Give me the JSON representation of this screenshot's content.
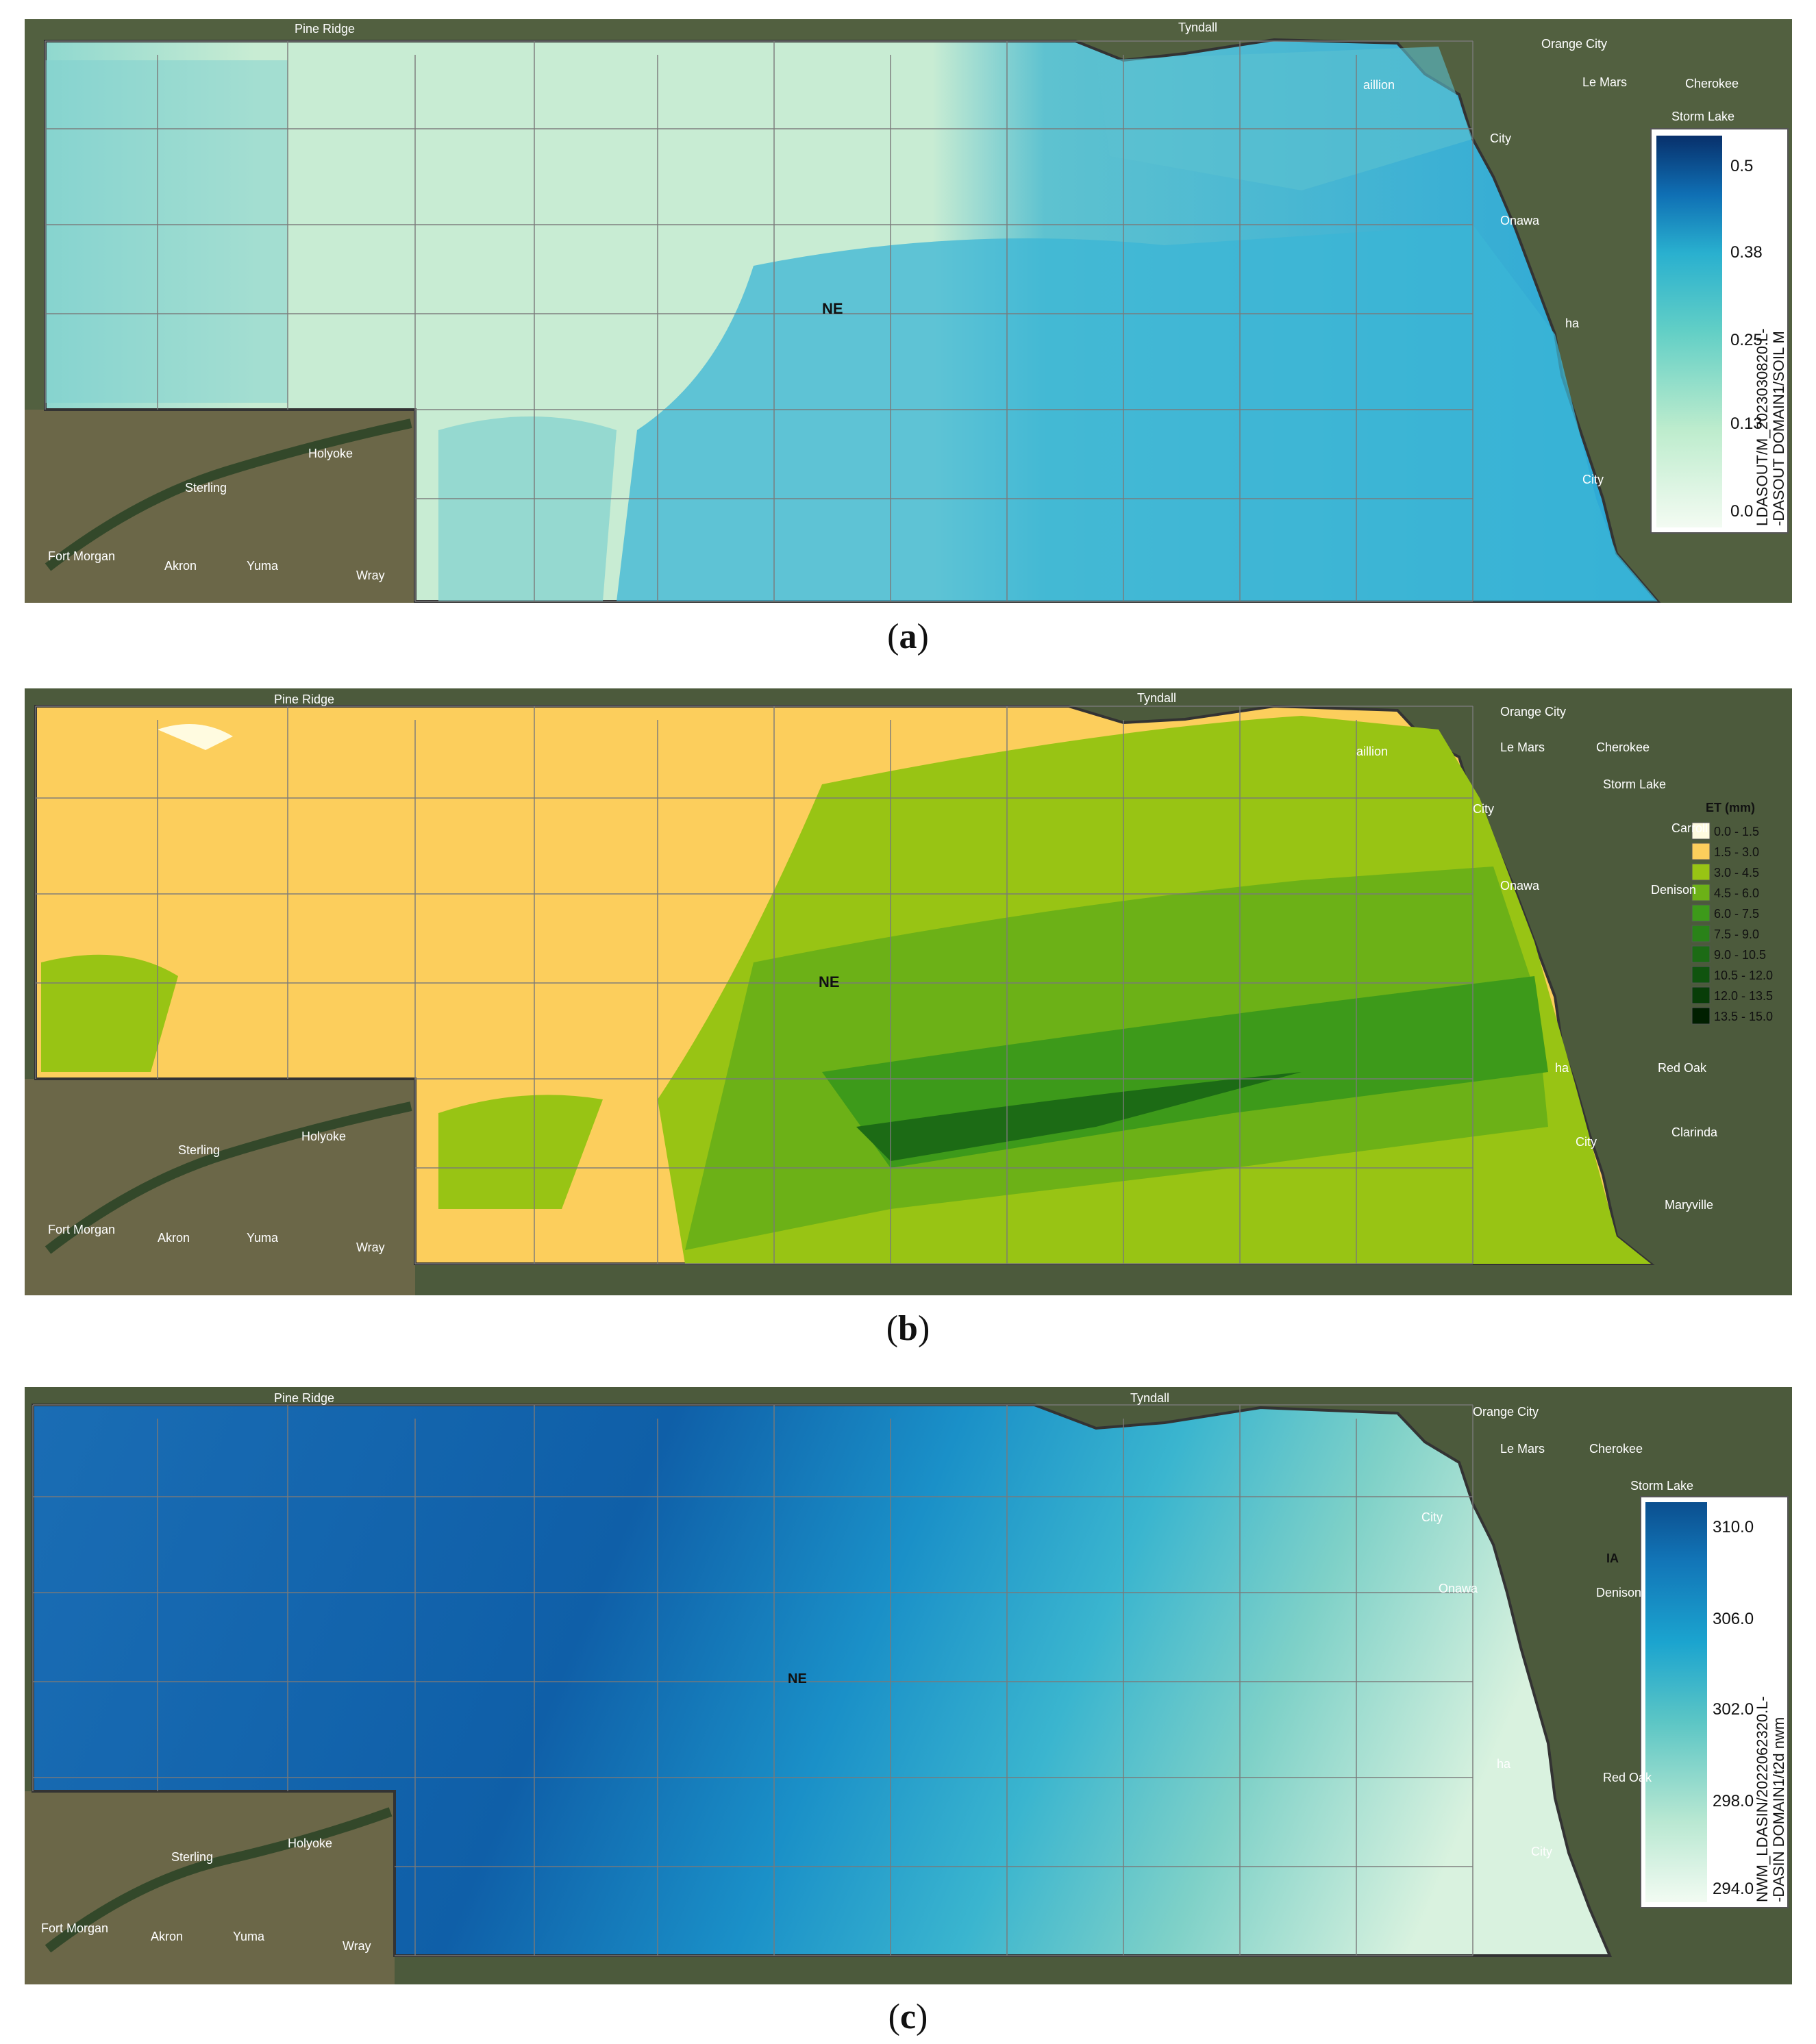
{
  "panels": [
    {
      "id": "a",
      "caption_letter": "a",
      "state_label": "NE",
      "legend": {
        "type": "continuous",
        "title_line1": "LDASOUT/M_2023030820.L-",
        "title_line2": "-DASOUT DOMAIN1/SOIL M",
        "ticks": [
          "0.5",
          "0.38",
          "0.25",
          "0.13",
          "0.0"
        ],
        "colors": [
          "#08306b",
          "#0f6fb4",
          "#29b0cf",
          "#62cfc6",
          "#bdeccd",
          "#f3fbf2"
        ]
      },
      "map_colors": {
        "dry": "#c8ecd3",
        "mid": "#55c3d3",
        "wet": "#2aa7d6"
      },
      "places": [
        "Pine Ridge",
        "Tyndall",
        "Orange City",
        "Le Mars",
        "Cherokee",
        "Storm Lake",
        "City",
        "Onawa",
        "ha",
        "City",
        "Sterling",
        "Holyoke",
        "Fort Morgan",
        "Akron",
        "Yuma",
        "Wray",
        "aillion"
      ]
    },
    {
      "id": "b",
      "caption_letter": "b",
      "state_label": "NE",
      "legend": {
        "type": "classes",
        "title": "ET (mm)",
        "classes": [
          {
            "label": "0.0 - 1.5",
            "color": "#fffbe0"
          },
          {
            "label": "1.5 - 3.0",
            "color": "#fcce5c"
          },
          {
            "label": "3.0 - 4.5",
            "color": "#98c414"
          },
          {
            "label": "4.5 - 6.0",
            "color": "#6cb117"
          },
          {
            "label": "6.0 - 7.5",
            "color": "#3d9a1a"
          },
          {
            "label": "7.5 - 9.0",
            "color": "#2a8219"
          },
          {
            "label": "9.0 - 10.5",
            "color": "#1c6b15"
          },
          {
            "label": "10.5 - 12.0",
            "color": "#10540f"
          },
          {
            "label": "12.0 - 13.5",
            "color": "#083d08"
          },
          {
            "label": "13.5 - 15.0",
            "color": "#001f00"
          }
        ]
      },
      "places": [
        "Pine Ridge",
        "Tyndall",
        "Orange City",
        "Le Mars",
        "Cherokee",
        "Storm Lake",
        "City",
        "Onawa",
        "Denison",
        "ha",
        "Red Oak",
        "Clarinda",
        "City",
        "Maryville",
        "Sterling",
        "Holyoke",
        "Fort Morgan",
        "Akron",
        "Yuma",
        "Wray",
        "aillion",
        "Carroll"
      ]
    },
    {
      "id": "c",
      "caption_letter": "c",
      "state_label": "NE",
      "legend": {
        "type": "continuous",
        "title_line1": "NWM_LDASIN/2022062320.L-",
        "title_line2": "-DASIN DOMAIN1/t2d nwm",
        "ticks": [
          "310.0",
          "306.0",
          "302.0",
          "298.0",
          "294.0"
        ],
        "colors": [
          "#0b4f8f",
          "#1276b8",
          "#1ba4cf",
          "#5cc6c5",
          "#b9e8d2",
          "#f2fbf2"
        ]
      },
      "places": [
        "Pine Ridge",
        "Tyndall",
        "Orange City",
        "Le Mars",
        "Cherokee",
        "Storm Lake",
        "City",
        "Onawa",
        "Denison",
        "IA",
        "ha",
        "Red Oak",
        "City",
        "Sterling",
        "Holyoke",
        "Fort Morgan",
        "Akron",
        "Yuma",
        "Wray"
      ]
    }
  ]
}
